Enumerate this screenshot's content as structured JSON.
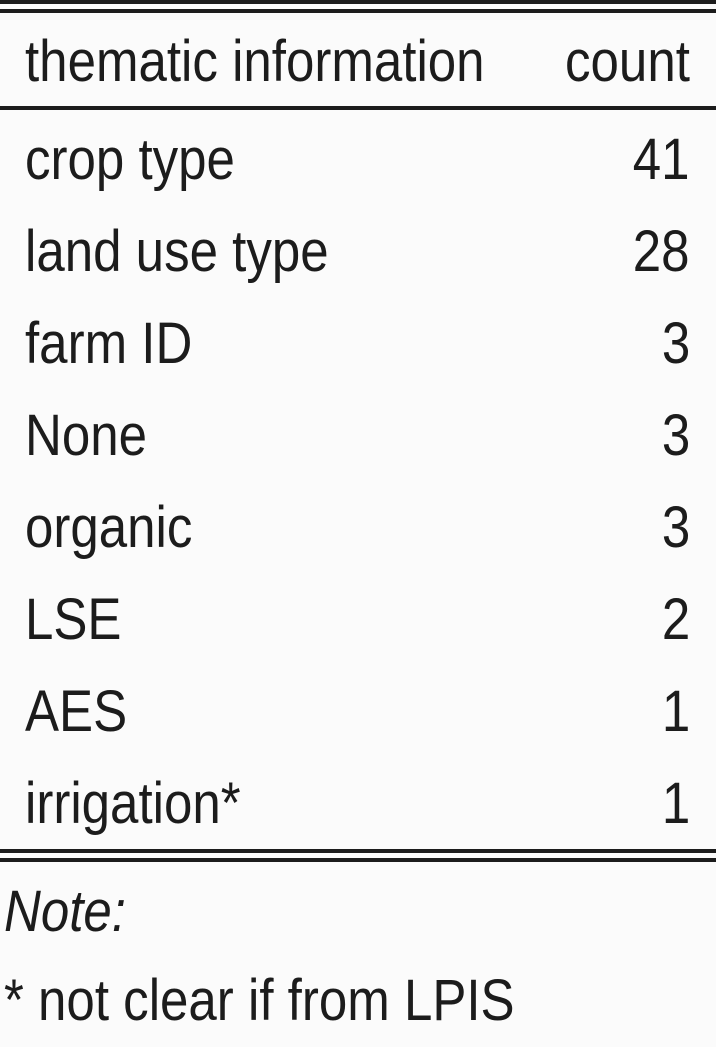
{
  "table": {
    "headers": {
      "thematic": "thematic information",
      "count": "count"
    },
    "rows": [
      {
        "thematic": "crop type",
        "count": "41"
      },
      {
        "thematic": "land use type",
        "count": "28"
      },
      {
        "thematic": "farm ID",
        "count": "3"
      },
      {
        "thematic": "None",
        "count": "3"
      },
      {
        "thematic": "organic",
        "count": "3"
      },
      {
        "thematic": "LSE",
        "count": "2"
      },
      {
        "thematic": "AES",
        "count": "1"
      },
      {
        "thematic": "irrigation*",
        "count": "1"
      }
    ]
  },
  "note": {
    "label": "Note:",
    "text": "* not clear if from LPIS"
  }
}
